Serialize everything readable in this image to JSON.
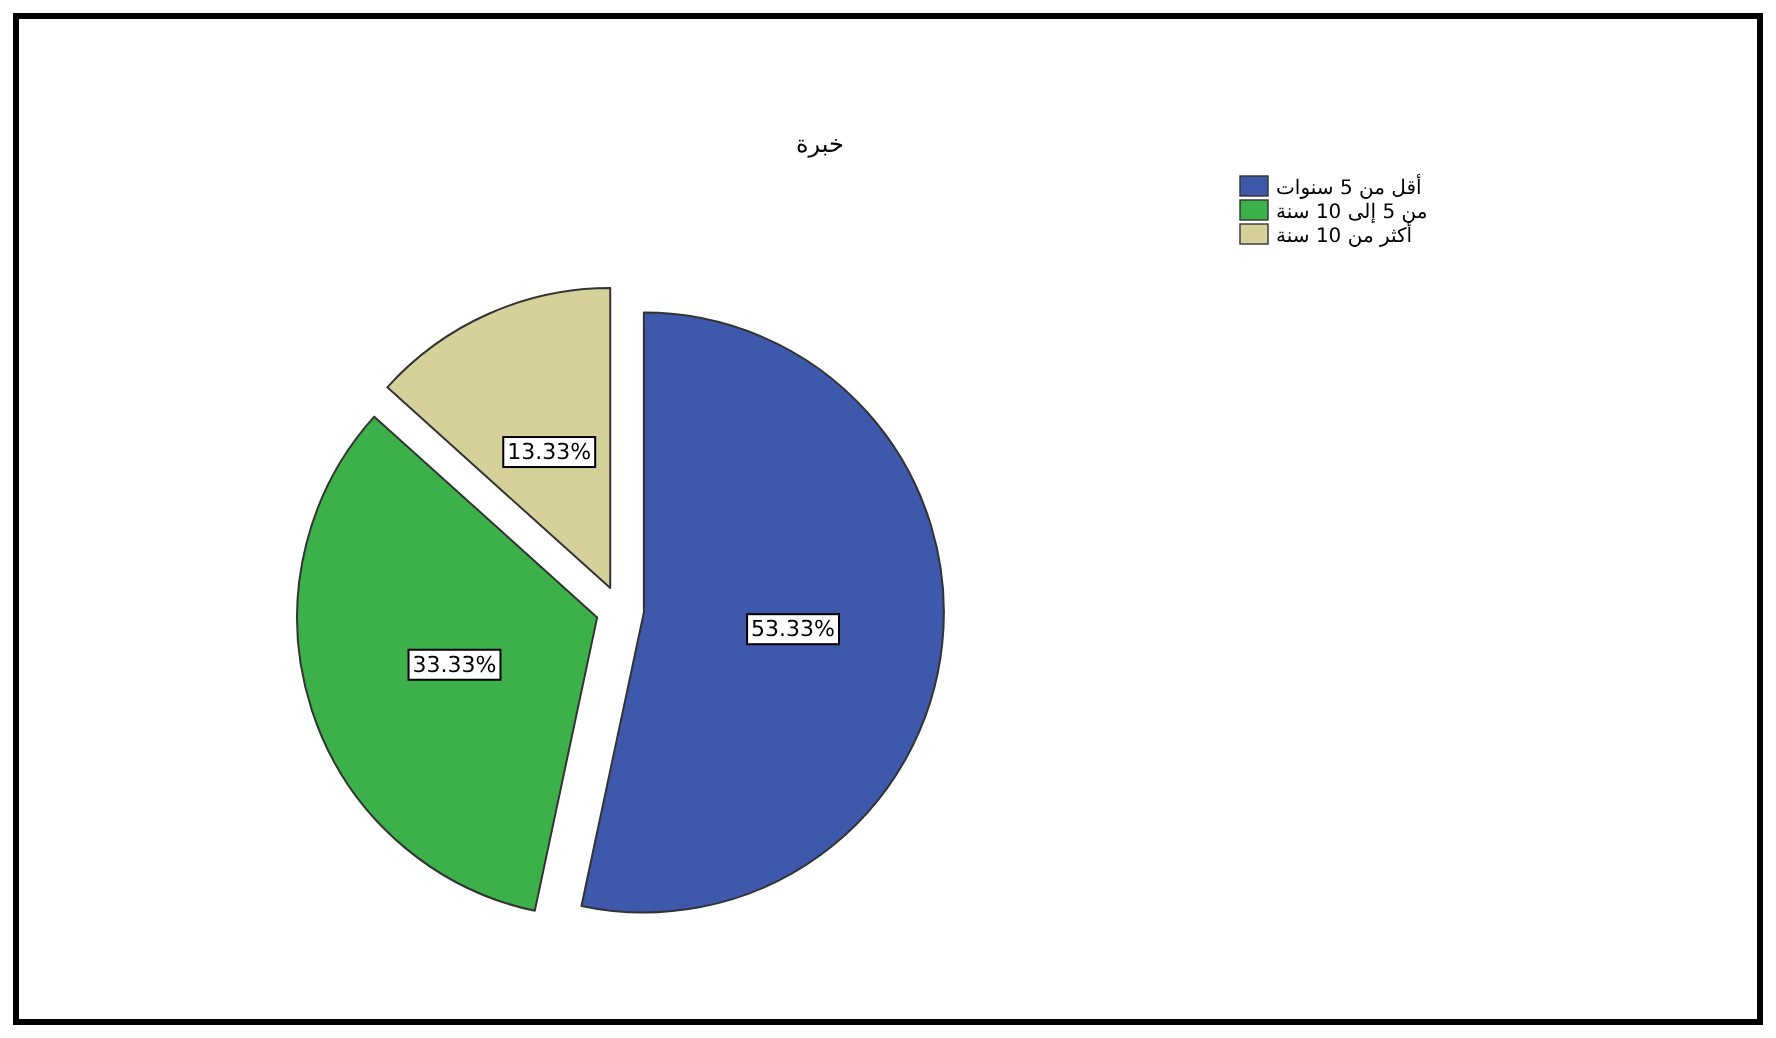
{
  "chart_data": {
    "type": "pie",
    "title": "خبرة",
    "categories": [
      "أقل من 5 سنوات",
      "من 5 إلى 10 سنة",
      "أكثر من 10 سنة"
    ],
    "values": [
      53.33,
      33.33,
      13.33
    ],
    "colors": [
      "#3e58ac",
      "#3cb14a",
      "#d6d09b"
    ],
    "value_labels": [
      "53.33%",
      "33.33%",
      "13.33%"
    ],
    "legend": "top right"
  }
}
